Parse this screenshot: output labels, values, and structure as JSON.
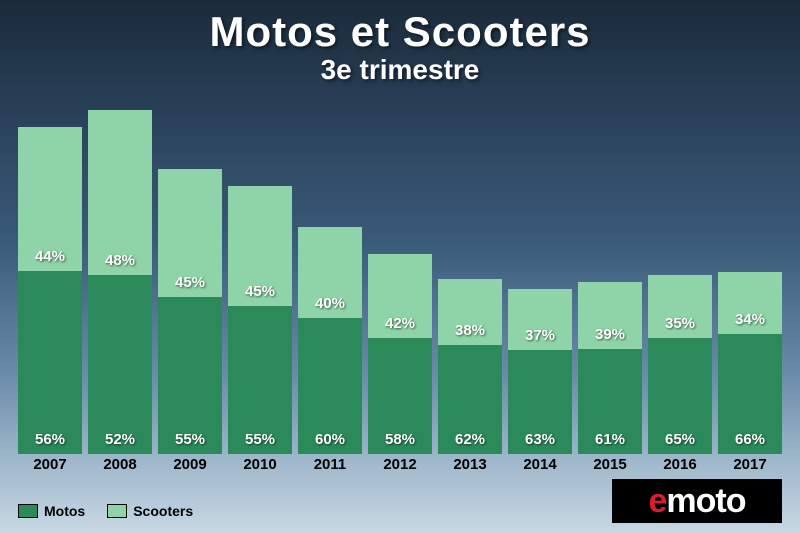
{
  "title": "Motos et Scooters",
  "subtitle": "3e trimestre",
  "chart": {
    "type": "stacked-bar",
    "series": [
      {
        "name": "Motos",
        "color": "#2b8a5a"
      },
      {
        "name": "Scooters",
        "color": "#8fd4a8"
      }
    ],
    "data": [
      {
        "year": "2007",
        "motos": 56,
        "scooters": 44,
        "total": 95
      },
      {
        "year": "2008",
        "motos": 52,
        "scooters": 48,
        "total": 100
      },
      {
        "year": "2009",
        "motos": 55,
        "scooters": 45,
        "total": 83
      },
      {
        "year": "2010",
        "motos": 55,
        "scooters": 45,
        "total": 78
      },
      {
        "year": "2011",
        "motos": 60,
        "scooters": 40,
        "total": 66
      },
      {
        "year": "2012",
        "motos": 58,
        "scooters": 42,
        "total": 58
      },
      {
        "year": "2013",
        "motos": 62,
        "scooters": 38,
        "total": 51
      },
      {
        "year": "2014",
        "motos": 63,
        "scooters": 37,
        "total": 48
      },
      {
        "year": "2015",
        "motos": 61,
        "scooters": 39,
        "total": 50
      },
      {
        "year": "2016",
        "motos": 65,
        "scooters": 35,
        "total": 52
      },
      {
        "year": "2017",
        "motos": 66,
        "scooters": 34,
        "total": 53
      }
    ],
    "label_suffix": "%",
    "label_color": "#ffffff",
    "label_fontsize": 15,
    "year_label_color": "#000000",
    "year_label_fontsize": 15,
    "bar_gap": 6,
    "max_total": 100
  },
  "legend": {
    "items": [
      {
        "label": "Motos",
        "color": "#2b8a5a"
      },
      {
        "label": "Scooters",
        "color": "#8fd4a8"
      }
    ]
  },
  "logo": {
    "prefix": "e",
    "suffix": "moto",
    "prefix_color": "#d81e2c",
    "suffix_color": "#ffffff",
    "bg": "#000000"
  },
  "background": {
    "gradient_stops": [
      "#1a2a3a",
      "#3a5a7a",
      "#6a8aaa",
      "#9ab4c8",
      "#c8d8e4"
    ]
  }
}
